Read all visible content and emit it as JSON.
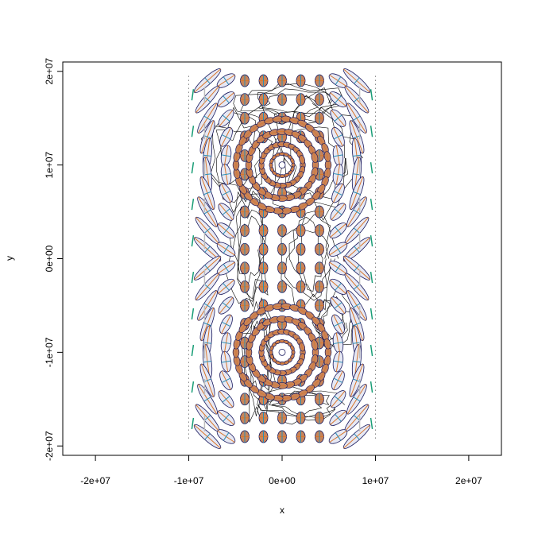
{
  "chart_data": {
    "type": "scatter",
    "title": "",
    "xlabel": "x",
    "ylabel": "y",
    "xlim": [
      -23500000.0,
      23500000.0
    ],
    "ylim": [
      -21000000.0,
      21000000.0
    ],
    "grid": false,
    "legend": null,
    "x_ticks": [
      {
        "value": -20000000.0,
        "label": "-2e+07"
      },
      {
        "value": -10000000.0,
        "label": "-1e+07"
      },
      {
        "value": 0,
        "label": "0e+00"
      },
      {
        "value": 10000000.0,
        "label": "1e+07"
      },
      {
        "value": 20000000.0,
        "label": "2e+07"
      }
    ],
    "y_ticks": [
      {
        "value": -20000000.0,
        "label": "-2e+07"
      },
      {
        "value": -10000000.0,
        "label": "-1e+07"
      },
      {
        "value": 0,
        "label": "0e+00"
      },
      {
        "value": 10000000.0,
        "label": "1e+07"
      },
      {
        "value": 20000000.0,
        "label": "2e+07"
      }
    ],
    "projection_extent": {
      "x": [
        -10000000.0,
        10000000.0
      ],
      "y": [
        -19500000.0,
        19500000.0
      ]
    },
    "indicatrix_poles": [
      {
        "x": 0,
        "y": 10000000.0
      },
      {
        "x": 0,
        "y": -10000000.0
      }
    ],
    "colors": {
      "ellipse_outline": "#1a1a5e",
      "ellipse_fill": "#e6e8f4",
      "circle_fill": "#c8845a",
      "cross_major": "#d9772b",
      "cross_minor": "#2a8fb5",
      "edge_tick_major": "#1a9e77",
      "edge_tick_minor": "#bdbdbd",
      "coastline": "#000000"
    }
  }
}
